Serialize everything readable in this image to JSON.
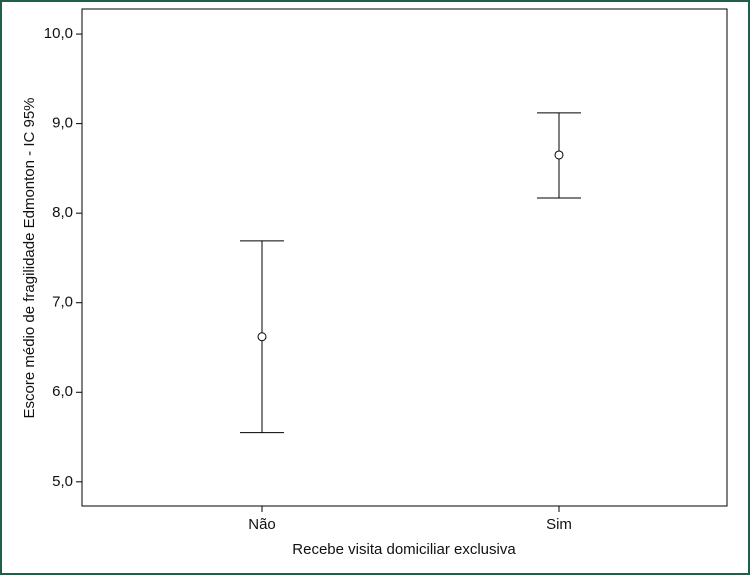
{
  "chart_data": {
    "type": "errorbar",
    "x_label": "Recebe visita domiciliar exclusiva",
    "y_label": "Escore médio de fragilidade Edmonton - IC 95%",
    "categories": [
      "Não",
      "Sim"
    ],
    "values": [
      6.62,
      8.65
    ],
    "lower": [
      5.55,
      8.17
    ],
    "upper": [
      7.69,
      9.12
    ],
    "color": "#000000",
    "ylim": [
      4.73,
      10.28
    ],
    "yticks": [
      {
        "value": 5,
        "label": "5,0"
      },
      {
        "value": 6,
        "label": "6,0"
      },
      {
        "value": 7,
        "label": "7,0"
      },
      {
        "value": 8,
        "label": "8,0"
      },
      {
        "value": 9,
        "label": "9,0"
      },
      {
        "value": 10,
        "label": "10,0"
      }
    ],
    "grid": false
  }
}
